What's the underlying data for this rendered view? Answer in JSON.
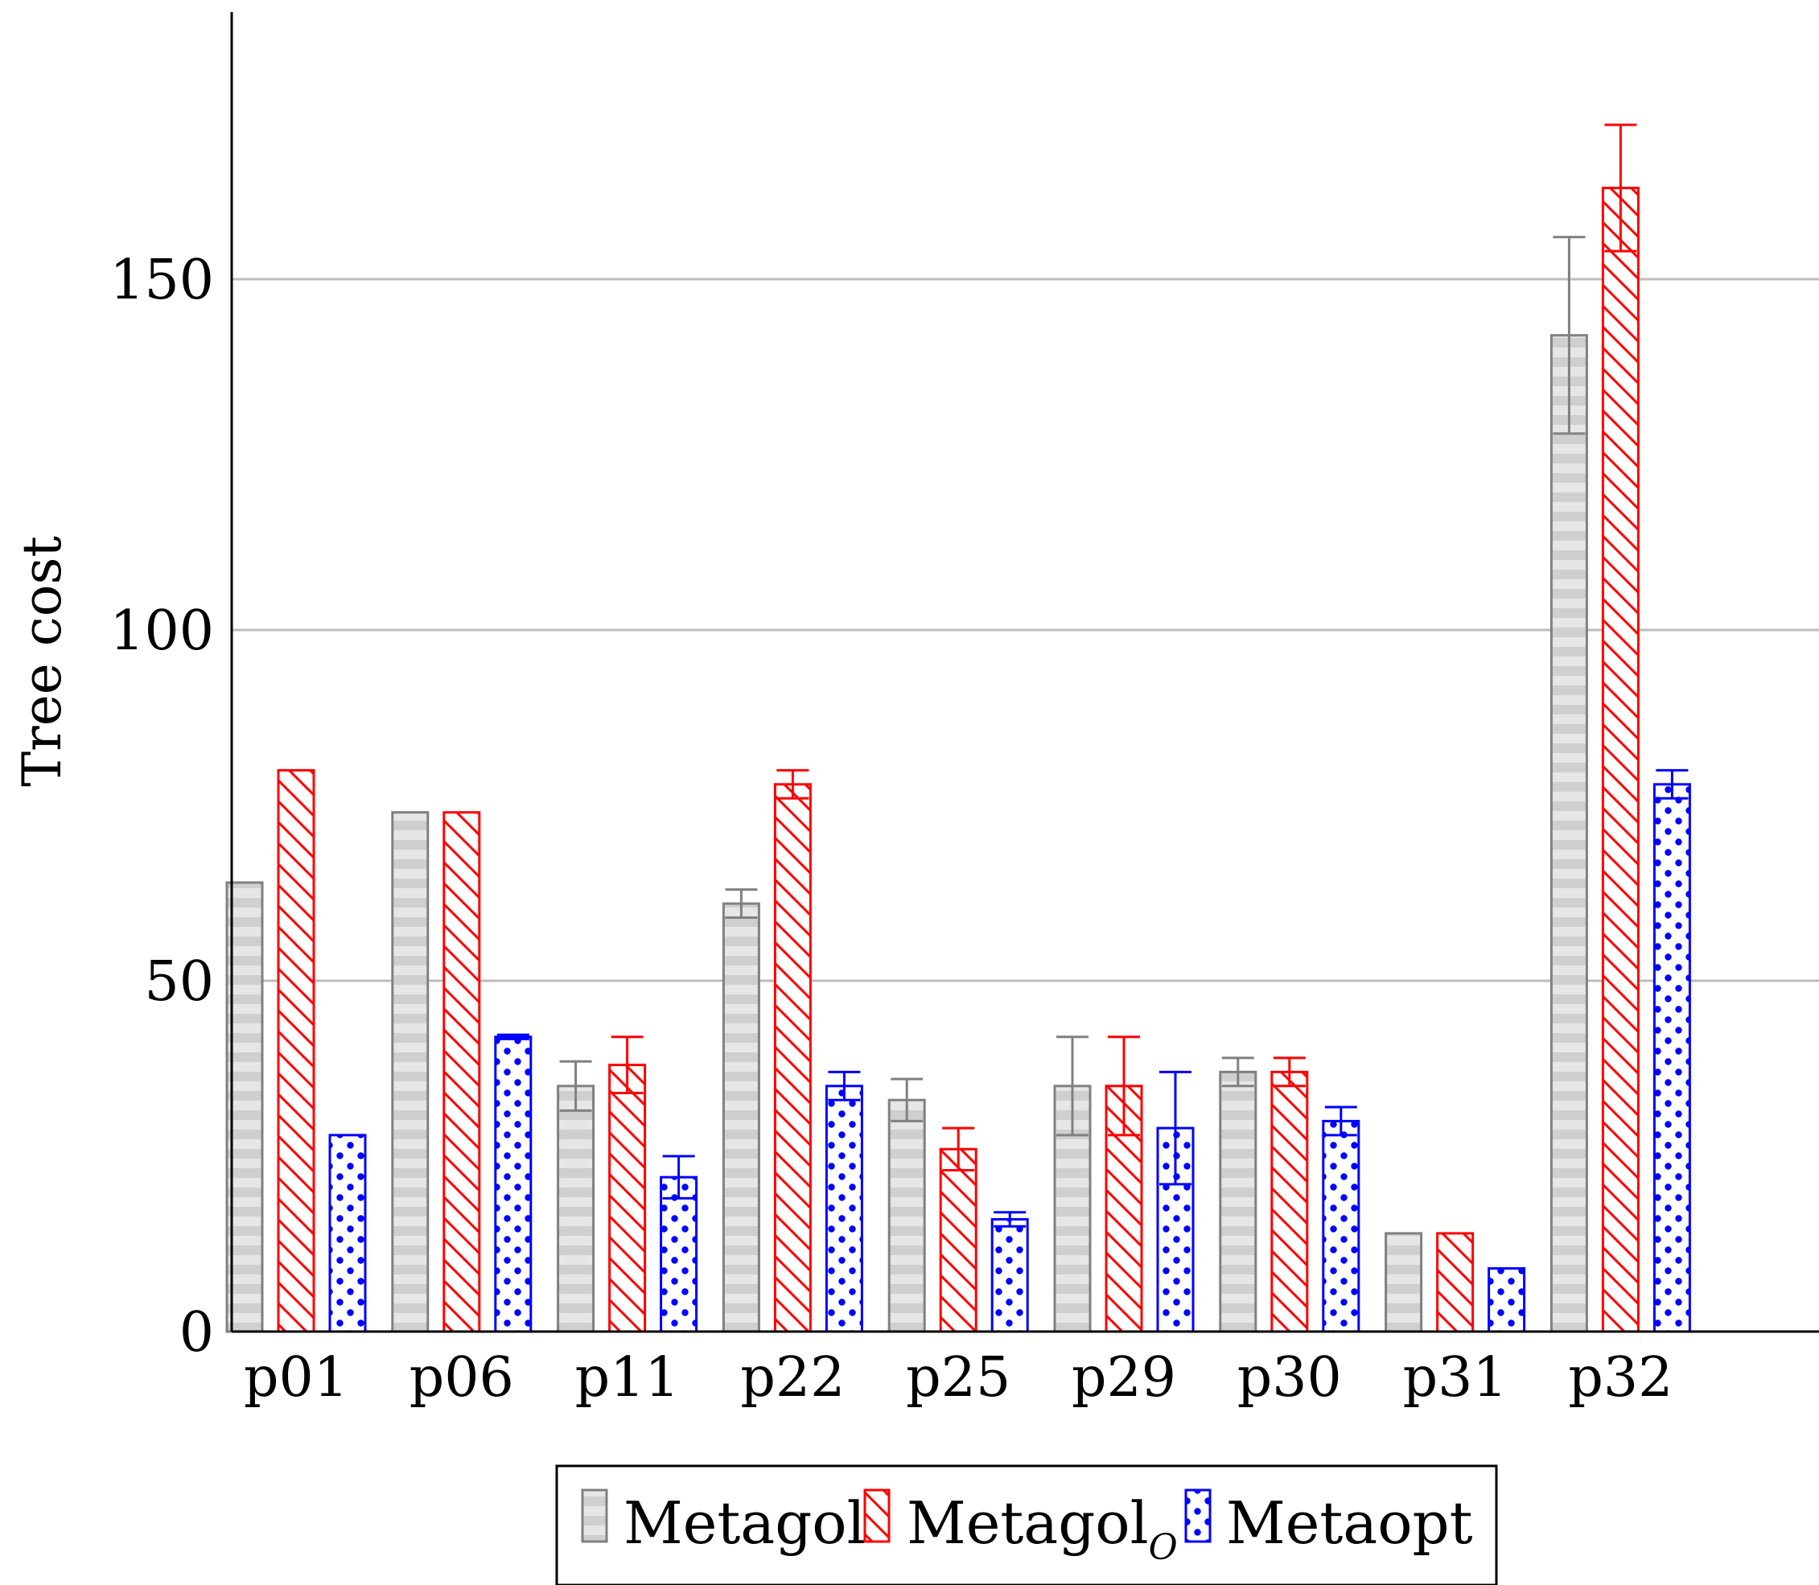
{
  "chart_data": {
    "type": "bar",
    "ylabel": "Tree cost",
    "xlabel": "",
    "ylim": [
      0,
      188
    ],
    "yticks": [
      0,
      50,
      100,
      150
    ],
    "grid": "horizontal",
    "legend_position": "bottom",
    "categories": [
      "p01",
      "p06",
      "p11",
      "p22",
      "p25",
      "p29",
      "p30",
      "p31",
      "p32"
    ],
    "series": [
      {
        "name": "Metagol",
        "color": "#808080",
        "fill": "#d9d9d9",
        "pattern": "horizontal-stripes",
        "values": [
          64,
          74,
          35,
          61,
          33,
          35,
          37,
          14,
          142
        ],
        "error": [
          0,
          0,
          3.5,
          2,
          3,
          7,
          2,
          0,
          14
        ]
      },
      {
        "name": "Metagol",
        "name_subscript": "O",
        "color": "#ff0000",
        "fill": "#ffffff",
        "pattern": "diagonal-hatch",
        "values": [
          80,
          74,
          38,
          78,
          26,
          35,
          37,
          14,
          163
        ],
        "error": [
          0,
          0,
          4,
          2,
          3,
          7,
          2,
          0,
          9
        ]
      },
      {
        "name": "Metaopt",
        "color": "#0000ff",
        "fill": "#ffffff",
        "pattern": "dots",
        "values": [
          28,
          42,
          22,
          35,
          16,
          29,
          30,
          9,
          78
        ],
        "error": [
          0,
          0.3,
          3,
          2,
          1,
          8,
          2,
          0,
          2
        ]
      }
    ]
  }
}
